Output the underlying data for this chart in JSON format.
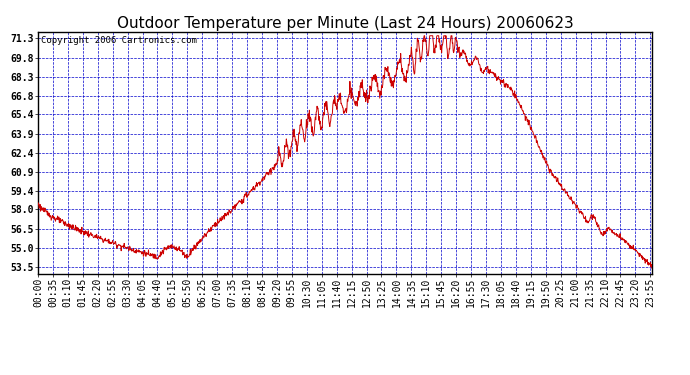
{
  "title": "Outdoor Temperature per Minute (Last 24 Hours) 20060623",
  "copyright_text": "Copyright 2006 Cartronics.com",
  "background_color": "#ffffff",
  "plot_bg_color": "#ffffff",
  "line_color": "#cc0000",
  "grid_color": "#0000cc",
  "border_color": "#000000",
  "ylim": [
    53.0,
    71.8
  ],
  "yticks": [
    53.5,
    55.0,
    56.5,
    58.0,
    59.4,
    60.9,
    62.4,
    63.9,
    65.4,
    66.8,
    68.3,
    69.8,
    71.3
  ],
  "title_fontsize": 11,
  "tick_fontsize": 7,
  "copyright_fontsize": 6.5,
  "ylabel_bold": true
}
